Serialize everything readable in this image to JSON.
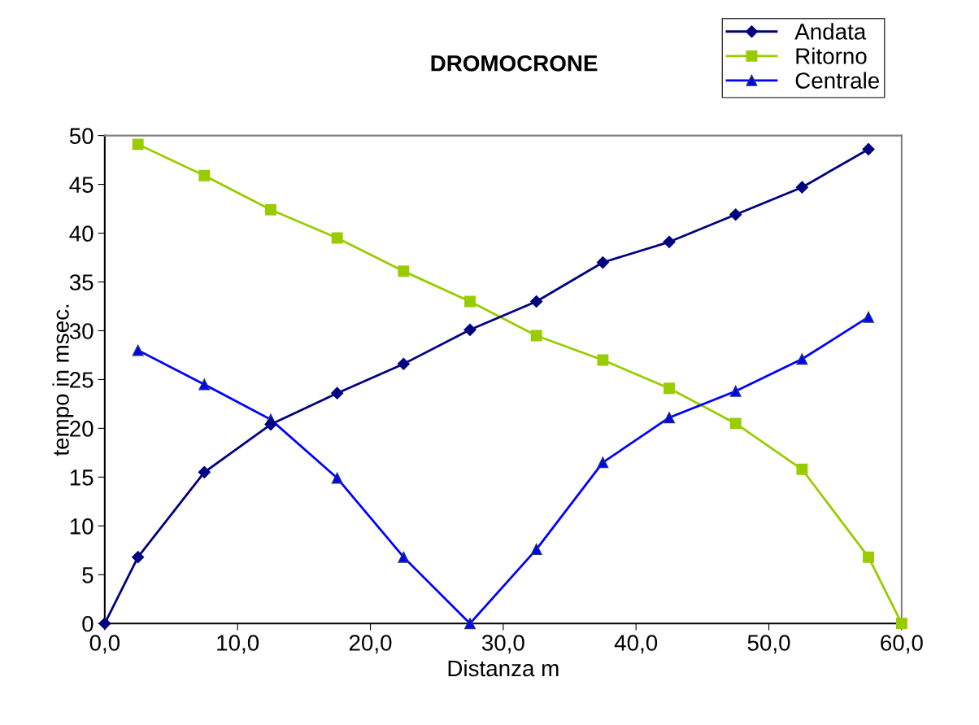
{
  "chart_data": {
    "type": "line",
    "title": "DROMOCRONE",
    "xlabel": "Distanza m",
    "ylabel": "tempo in msec.",
    "xlim": [
      0,
      60
    ],
    "xticks": [
      {
        "value": 0,
        "label": "0,0"
      },
      {
        "value": 10,
        "label": "10,0"
      },
      {
        "value": 20,
        "label": "20,0"
      },
      {
        "value": 30,
        "label": "30,0"
      },
      {
        "value": 40,
        "label": "40,0"
      },
      {
        "value": 50,
        "label": "50,0"
      },
      {
        "value": 60,
        "label": "60,0"
      }
    ],
    "ylim": [
      0,
      50
    ],
    "yticks": [
      0,
      5,
      10,
      15,
      20,
      25,
      30,
      35,
      40,
      45,
      50
    ],
    "grid": false,
    "legend": "top right",
    "series": [
      {
        "name": "Andata",
        "color": "#000080",
        "marker": "diamond",
        "x": [
          0,
          2.5,
          7.5,
          12.5,
          17.5,
          22.5,
          27.5,
          32.5,
          37.5,
          42.5,
          47.5,
          52.5,
          57.5
        ],
        "values": [
          0,
          6.8,
          15.5,
          20.4,
          23.6,
          26.6,
          30.1,
          33.0,
          37.0,
          39.1,
          41.9,
          44.7,
          48.6
        ]
      },
      {
        "name": "Ritorno",
        "color": "#99cc00",
        "marker": "square",
        "x": [
          2.5,
          7.5,
          12.5,
          17.5,
          22.5,
          27.5,
          32.5,
          37.5,
          42.5,
          47.5,
          52.5,
          57.5,
          60
        ],
        "values": [
          49.1,
          45.9,
          42.4,
          39.5,
          36.1,
          33.0,
          29.5,
          27.0,
          24.1,
          20.5,
          15.8,
          6.8,
          0
        ]
      },
      {
        "name": "Centrale",
        "color": "#0000ff",
        "marker": "triangle",
        "x": [
          2.5,
          7.5,
          12.5,
          17.5,
          22.5,
          27.5,
          32.5,
          37.5,
          42.5,
          47.5,
          52.5,
          57.5
        ],
        "values": [
          28.0,
          24.5,
          20.9,
          14.9,
          6.8,
          0,
          7.6,
          16.5,
          21.1,
          23.8,
          27.1,
          31.4
        ]
      }
    ]
  }
}
